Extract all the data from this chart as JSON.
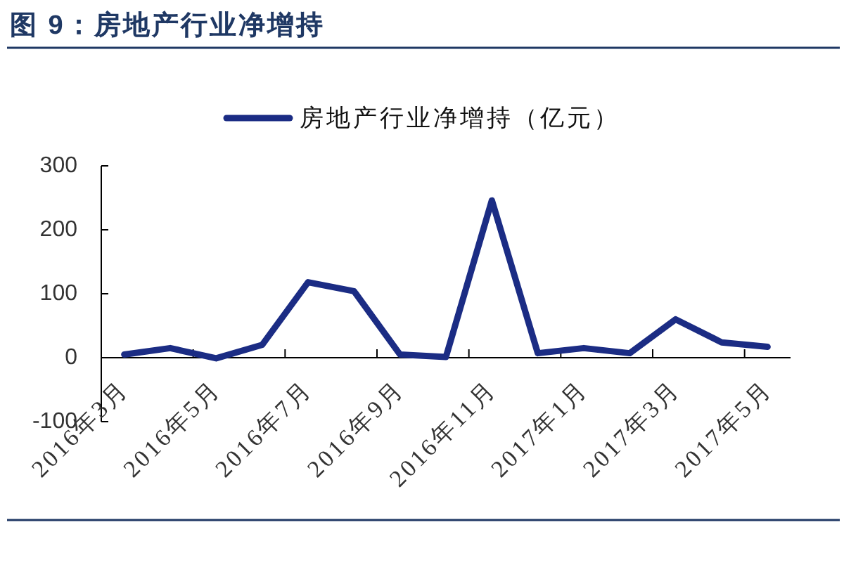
{
  "chart_data": {
    "type": "line",
    "title": "图 9：房地产行业净增持",
    "categories": [
      "2016年3月",
      null,
      "2016年5月",
      null,
      "2016年7月",
      null,
      "2016年9月",
      null,
      "2016年11月",
      null,
      "2017年1月",
      null,
      "2017年3月",
      null,
      "2017年5月"
    ],
    "series": [
      {
        "name": "房地产行业净增持（亿元）",
        "color": "#1b2c84",
        "values": [
          5,
          15,
          -1,
          20,
          118,
          104,
          5,
          1,
          246,
          7,
          15,
          7,
          60,
          24,
          17
        ]
      }
    ],
    "ylim": [
      -100,
      300
    ],
    "yticks": [
      -100,
      0,
      100,
      200,
      300
    ],
    "legend": "top"
  }
}
